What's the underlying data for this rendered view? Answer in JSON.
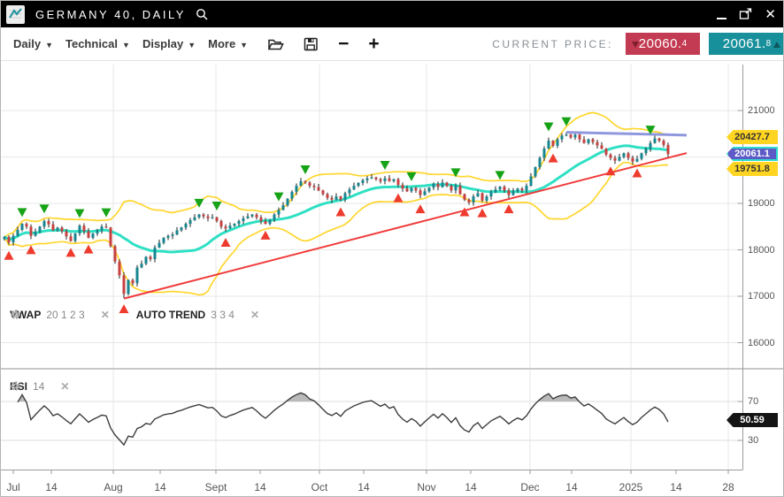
{
  "window": {
    "title": "GERMANY 40, DAILY",
    "controls": {
      "minimize": "minimize",
      "popout": "open-in-new-window",
      "close": "✕"
    }
  },
  "toolbar": {
    "menus": [
      {
        "label": "Daily"
      },
      {
        "label": "Technical"
      },
      {
        "label": "Display"
      },
      {
        "label": "More"
      }
    ],
    "zoom_out_label": "−",
    "zoom_in_label": "+",
    "current_price_label": "CURRENT PRICE:",
    "bid": {
      "int": "20060",
      "dec": "4",
      "direction": "down",
      "color": "#c33b52"
    },
    "ask": {
      "int": "20061",
      "dec": "8",
      "direction": "up",
      "color": "#18909b"
    }
  },
  "indicators": {
    "vwap": {
      "name": "VWAP",
      "params": "20 1 2 3"
    },
    "auto_trend": {
      "name": "AUTO TREND",
      "params": "3 3 4"
    },
    "rsi": {
      "name": "RSI",
      "params": "14"
    }
  },
  "price_tags": [
    {
      "value": "20427.7",
      "type": "band-upper",
      "style": "yellow"
    },
    {
      "value": "20061.1",
      "type": "current-price",
      "style": "current"
    },
    {
      "value": "19751.8",
      "type": "band-lower",
      "style": "yellow"
    }
  ],
  "rsi_tag": {
    "value": "50.59"
  },
  "chart_data": {
    "type": "candlestick",
    "title": "GERMANY 40, DAILY",
    "instrument": "GERMANY 40",
    "timeframe": "Daily",
    "y_axis": {
      "ticks": [
        21000,
        20000,
        19000,
        18000,
        17000,
        16000
      ],
      "visible_range": [
        15800,
        21900
      ]
    },
    "x_axis": {
      "ticks": [
        {
          "label": "Jul",
          "bar": 2,
          "grid": false
        },
        {
          "label": "14",
          "bar": 10.6,
          "grid": false
        },
        {
          "label": "Aug",
          "bar": 24.6,
          "grid": true
        },
        {
          "label": "14",
          "bar": 35.2,
          "grid": false
        },
        {
          "label": "Sept",
          "bar": 47.8,
          "grid": true
        },
        {
          "label": "14",
          "bar": 57.8,
          "grid": false
        },
        {
          "label": "Oct",
          "bar": 71.2,
          "grid": true
        },
        {
          "label": "14",
          "bar": 81.2,
          "grid": false
        },
        {
          "label": "Nov",
          "bar": 95.4,
          "grid": true
        },
        {
          "label": "14",
          "bar": 105.4,
          "grid": false
        },
        {
          "label": "Dec",
          "bar": 118.8,
          "grid": true
        },
        {
          "label": "14",
          "bar": 128.2,
          "grid": false
        },
        {
          "label": "2025",
          "bar": 141.6,
          "grid": true
        },
        {
          "label": "14",
          "bar": 151.8,
          "grid": false
        },
        {
          "label": "28",
          "bar": 163.6,
          "grid": true
        }
      ]
    },
    "candles": {
      "first_open": 18230,
      "closes": [
        18280,
        18160,
        18300,
        18430,
        18560,
        18500,
        18300,
        18390,
        18500,
        18620,
        18550,
        18420,
        18480,
        18400,
        18290,
        18190,
        18350,
        18520,
        18400,
        18260,
        18350,
        18420,
        18500,
        18480,
        18080,
        17750,
        17450,
        17050,
        17350,
        17280,
        17620,
        17700,
        17850,
        17800,
        18050,
        18150,
        18260,
        18300,
        18330,
        18420,
        18480,
        18560,
        18640,
        18700,
        18760,
        18720,
        18680,
        18700,
        18620,
        18500,
        18460,
        18520,
        18560,
        18620,
        18680,
        18720,
        18760,
        18700,
        18620,
        18560,
        18650,
        18760,
        18860,
        18960,
        19100,
        19250,
        19380,
        19480,
        19450,
        19380,
        19350,
        19280,
        19200,
        19120,
        19080,
        19150,
        19080,
        19220,
        19300,
        19380,
        19440,
        19500,
        19540,
        19560,
        19520,
        19480,
        19540,
        19480,
        19520,
        19400,
        19320,
        19260,
        19330,
        19280,
        19180,
        19260,
        19340,
        19420,
        19350,
        19450,
        19380,
        19280,
        19380,
        19200,
        19080,
        19020,
        19150,
        19220,
        19060,
        19150,
        19240,
        19300,
        19360,
        19280,
        19180,
        19260,
        19320,
        19280,
        19380,
        19580,
        19780,
        19980,
        20180,
        20350,
        20240,
        20380,
        20460,
        20480,
        20420,
        20480,
        20380,
        20300,
        20380,
        20320,
        20250,
        20180,
        20050,
        19980,
        19920,
        20000,
        20080,
        19980,
        19900,
        19960,
        20080,
        20180,
        20300,
        20400,
        20350,
        20260,
        20061
      ],
      "wick_overrides": {
        "27": {
          "low": 16960
        },
        "127": {
          "high": 20530
        },
        "147": {
          "high": 20460
        }
      }
    },
    "signals": {
      "sell_bars": [
        4,
        9,
        17,
        23,
        44,
        48,
        62,
        68,
        86,
        92,
        102,
        112,
        123,
        127,
        146
      ],
      "buy_bars": [
        1,
        6,
        15,
        19,
        27,
        50,
        59,
        76,
        89,
        94,
        104,
        108,
        114,
        124,
        137,
        143
      ]
    },
    "trendlines": [
      {
        "name": "auto-trend-support",
        "color": "#f03030",
        "width": 2,
        "from": {
          "bar": 27,
          "price": 16950
        },
        "to": {
          "bar": 154.2,
          "price": 20085
        }
      },
      {
        "name": "auto-trend-resistance",
        "color": "#8a93de",
        "width": 3,
        "from": {
          "bar": 127,
          "price": 20530
        },
        "to": {
          "bar": 154.2,
          "price": 20470
        }
      }
    ],
    "vwap": {
      "period": 20,
      "band_sigma": 2,
      "line_color": "#2fe0c4",
      "band_color": "#ffd62e",
      "current": 20061.1,
      "upper": 20427.7,
      "lower": 19751.8
    },
    "rsi": {
      "period": 14,
      "levels": [
        70,
        30
      ],
      "last": 50.59
    },
    "colors": {
      "up_candle": "#17858f",
      "down_candle": "#c84040",
      "sell_arrow": "#17a317",
      "buy_arrow": "#ee3b2e"
    }
  }
}
